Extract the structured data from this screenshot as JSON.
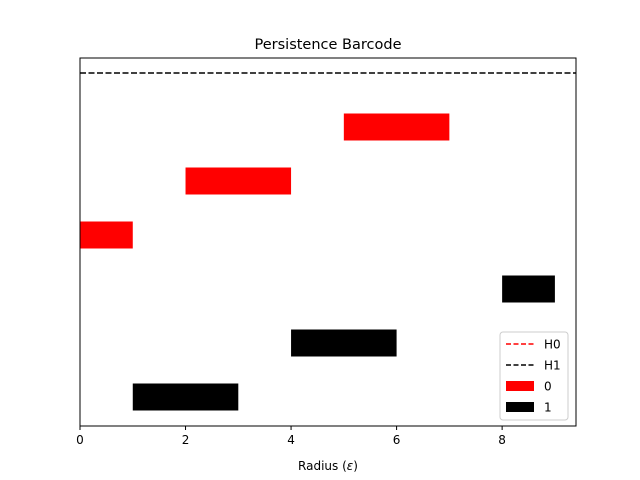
{
  "chart_data": {
    "type": "bar",
    "orientation": "horizontal-intervals",
    "title": "Persistence Barcode",
    "xlabel": "Radius (ε)",
    "xlabel_parts": {
      "prefix": "Radius (",
      "symbol": "ε",
      "suffix": ")"
    },
    "ylabel": "",
    "xlim": [
      0,
      9.4
    ],
    "xticks": [
      {
        "value": 0,
        "label": "0"
      },
      {
        "value": 2,
        "label": "2"
      },
      {
        "value": 4,
        "label": "4"
      },
      {
        "value": 6,
        "label": "6"
      },
      {
        "value": 8,
        "label": "8"
      }
    ],
    "yticks_visible": false,
    "grid": false,
    "legend_position": "lower-right",
    "legend": [
      {
        "label": "H0",
        "kind": "dashed-line",
        "color": "#ff0000"
      },
      {
        "label": "H1",
        "kind": "dashed-line",
        "color": "#000000"
      },
      {
        "label": "0",
        "kind": "patch",
        "color": "#ff0000"
      },
      {
        "label": "1",
        "kind": "patch",
        "color": "#000000"
      }
    ],
    "series": [
      {
        "name": "1",
        "dimension": 1,
        "color": "#000000",
        "bars": [
          {
            "birth": 1,
            "death": 3
          },
          {
            "birth": 4,
            "death": 6
          },
          {
            "birth": 8,
            "death": 9
          }
        ]
      },
      {
        "name": "0",
        "dimension": 0,
        "color": "#ff0000",
        "bars": [
          {
            "birth": 0,
            "death": 1
          },
          {
            "birth": 2,
            "death": 4
          },
          {
            "birth": 5,
            "death": 7
          }
        ]
      }
    ],
    "infinite_lines": [
      {
        "dimension": 1,
        "color": "#000000",
        "style": "dashed"
      }
    ]
  }
}
